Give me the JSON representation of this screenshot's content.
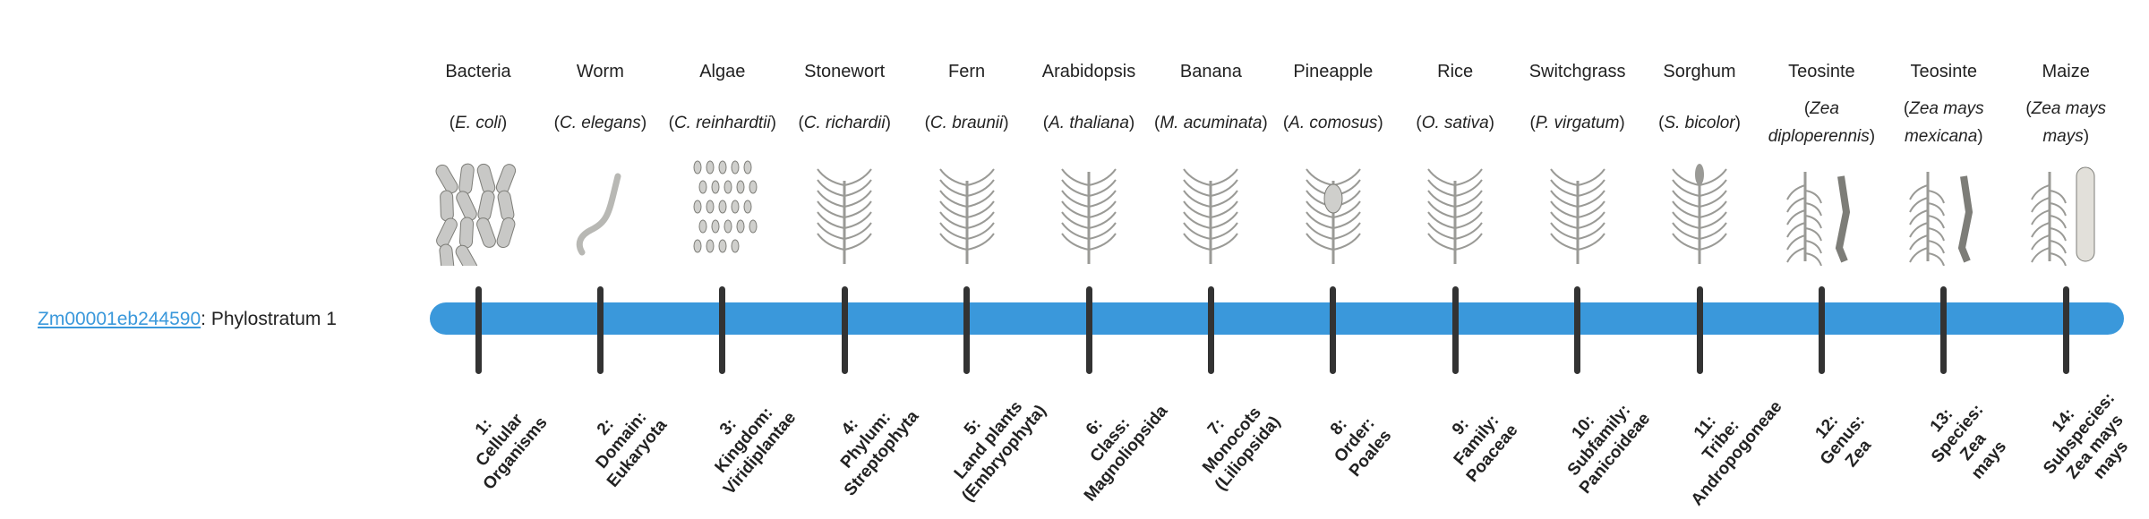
{
  "gene": {
    "id": "Zm00001eb244590",
    "suffix": ": Phylostratum 1"
  },
  "colors": {
    "bar": "#3a98db",
    "tick": "#333333",
    "link": "#3a98db",
    "illustration": "#9a9a96"
  },
  "strata": [
    {
      "common": "Bacteria",
      "sci": "E. coli",
      "icon": "bacteria-icon",
      "label": "1:\nCellular\nOrganisms"
    },
    {
      "common": "Worm",
      "sci": "C. elegans",
      "icon": "worm-icon",
      "label": "2:\nDomain:\nEukaryota"
    },
    {
      "common": "Algae",
      "sci": "C. reinhardtii",
      "icon": "algae-icon",
      "label": "3:\nKingdom:\nViridiplantae"
    },
    {
      "common": "Stonewort",
      "sci": "C. richardii",
      "icon": "stonewort-icon",
      "label": "4:\nPhylum:\nStreptophyta"
    },
    {
      "common": "Fern",
      "sci": "C. braunii",
      "icon": "fern-icon",
      "label": "5:\nLand plants\n(Embryophyta)"
    },
    {
      "common": "Arabidopsis",
      "sci": "A. thaliana",
      "icon": "arabidopsis-icon",
      "label": "6:\nClass:\nMagnoliopsida"
    },
    {
      "common": "Banana",
      "sci": "M. acuminata",
      "icon": "banana-icon",
      "label": "7:\nMonocots\n(Liliopsida)"
    },
    {
      "common": "Pineapple",
      "sci": "A. comosus",
      "icon": "pineapple-icon",
      "label": "8:\nOrder:\nPoales"
    },
    {
      "common": "Rice",
      "sci": "O. sativa",
      "icon": "rice-icon",
      "label": "9:\nFamily:\nPoaceae"
    },
    {
      "common": "Switchgrass",
      "sci": "P. virgatum",
      "icon": "switchgrass-icon",
      "label": "10:\nSubfamily:\nPanicoideae"
    },
    {
      "common": "Sorghum",
      "sci": "S. bicolor",
      "icon": "sorghum-icon",
      "label": "11:\nTribe:\nAndropogoneae"
    },
    {
      "common": "Teosinte",
      "sci": "Zea diploperennis",
      "icon": "teosinte-icon",
      "label": "12:\nGenus:\nZea"
    },
    {
      "common": "Teosinte",
      "sci": "Zea mays mexicana",
      "icon": "teosinte-icon",
      "label": "13:\nSpecies:\nZea\nmays"
    },
    {
      "common": "Maize",
      "sci": "Zea mays mays",
      "icon": "maize-icon",
      "label": "14:\nSubspecies:\nZea mays\nmays"
    }
  ]
}
